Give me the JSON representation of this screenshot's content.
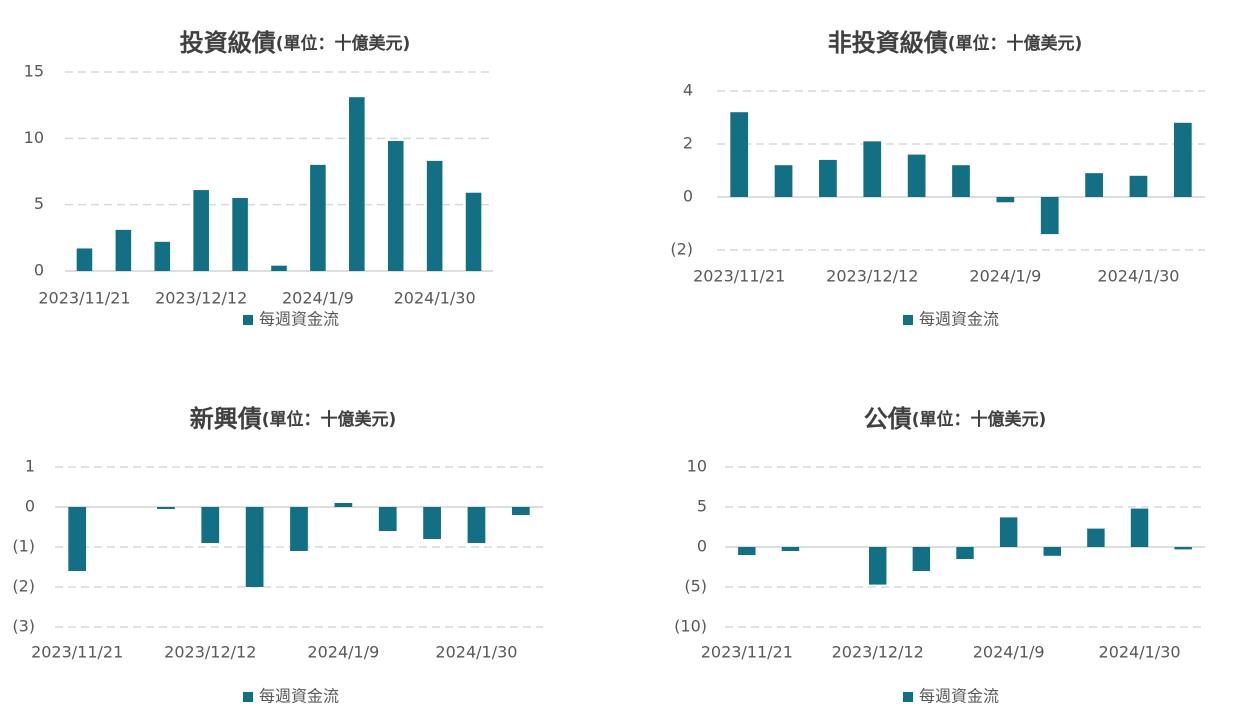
{
  "chart_data": [
    {
      "type": "bar",
      "title": "投資級債",
      "unit": "(單位：十億美元)",
      "categories": [
        "2023/11/21",
        null,
        null,
        "2023/12/12",
        null,
        null,
        "2024/1/9",
        null,
        null,
        "2024/1/30",
        null
      ],
      "series": [
        {
          "name": "每週資金流",
          "color": "#136f83",
          "values": [
            1.7,
            3.1,
            2.2,
            6.1,
            5.5,
            0.4,
            8.0,
            13.1,
            9.8,
            8.3,
            5.9
          ]
        }
      ],
      "ylim": [
        0,
        15
      ],
      "yticks": [
        0,
        5,
        10,
        15
      ],
      "grid": true,
      "legend": "bottom"
    },
    {
      "type": "bar",
      "title": "非投資級債",
      "unit": "(單位：十億美元)",
      "categories": [
        "2023/11/21",
        null,
        null,
        "2023/12/12",
        null,
        null,
        "2024/1/9",
        null,
        null,
        "2024/1/30",
        null
      ],
      "series": [
        {
          "name": "每週資金流",
          "color": "#136f83",
          "values": [
            3.2,
            1.2,
            1.4,
            2.1,
            1.6,
            1.2,
            -0.2,
            -1.4,
            0.9,
            0.8,
            2.8
          ]
        }
      ],
      "ylim": [
        -2,
        4
      ],
      "yticks": [
        {
          "value": -2,
          "label": "(2)"
        },
        0,
        2,
        4
      ],
      "grid": true,
      "legend": "bottom"
    },
    {
      "type": "bar",
      "title": "新興債",
      "unit": "(單位：十億美元)",
      "categories": [
        "2023/11/21",
        null,
        null,
        "2023/12/12",
        null,
        null,
        "2024/1/9",
        null,
        null,
        "2024/1/30",
        null
      ],
      "series": [
        {
          "name": "每週資金流",
          "color": "#136f83",
          "values": [
            -1.6,
            0,
            -0.05,
            -0.9,
            -2.0,
            -1.1,
            0.1,
            -0.6,
            -0.8,
            -0.9,
            -0.2
          ]
        }
      ],
      "ylim": [
        -3,
        1
      ],
      "yticks": [
        {
          "value": -3,
          "label": "(3)"
        },
        {
          "value": -2,
          "label": "(2)"
        },
        {
          "value": -1,
          "label": "(1)"
        },
        0,
        1
      ],
      "grid": true,
      "legend": "bottom"
    },
    {
      "type": "bar",
      "title": "公債",
      "unit": "(單位：十億美元)",
      "categories": [
        "2023/11/21",
        null,
        null,
        "2023/12/12",
        null,
        null,
        "2024/1/9",
        null,
        null,
        "2024/1/30",
        null
      ],
      "series": [
        {
          "name": "每週資金流",
          "color": "#136f83",
          "values": [
            -1.0,
            -0.5,
            0,
            -4.7,
            -3.0,
            -1.5,
            3.7,
            -1.1,
            2.3,
            4.8,
            -0.3
          ]
        }
      ],
      "ylim": [
        -10,
        10
      ],
      "yticks": [
        {
          "value": -10,
          "label": "(10)"
        },
        {
          "value": -5,
          "label": "(5)"
        },
        0,
        5,
        10
      ],
      "grid": true,
      "legend": "bottom"
    }
  ]
}
